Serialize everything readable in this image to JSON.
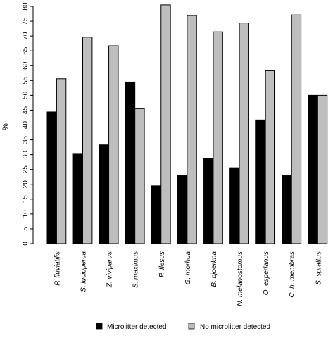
{
  "chart_data": {
    "type": "bar",
    "title": "",
    "xlabel": "",
    "ylabel": "%",
    "ylim": [
      0,
      80
    ],
    "yticks": [
      0,
      5,
      10,
      15,
      20,
      25,
      30,
      35,
      40,
      45,
      50,
      55,
      60,
      65,
      70,
      75,
      80
    ],
    "grid": false,
    "legend_position": "bottom",
    "categories": [
      "P. fluviatilis",
      "S. lucioperca",
      "Z. viviparus",
      "S. maximus",
      "P. flesus",
      "G. morhua",
      "B. bjoerkna",
      "N. melanostomus",
      "O. esperlanus",
      "C. h. membras",
      "S. sprattus"
    ],
    "series": [
      {
        "name": "Microlitter detected",
        "color": "#000000",
        "values": [
          44.4,
          30.4,
          33.3,
          54.5,
          19.5,
          23.1,
          28.6,
          25.6,
          41.7,
          22.9,
          50.0
        ]
      },
      {
        "name": "No microlitter detected",
        "color": "#bebebe",
        "values": [
          55.6,
          69.6,
          66.7,
          45.5,
          80.5,
          76.9,
          71.4,
          74.4,
          58.3,
          77.1,
          50.0
        ]
      }
    ]
  }
}
